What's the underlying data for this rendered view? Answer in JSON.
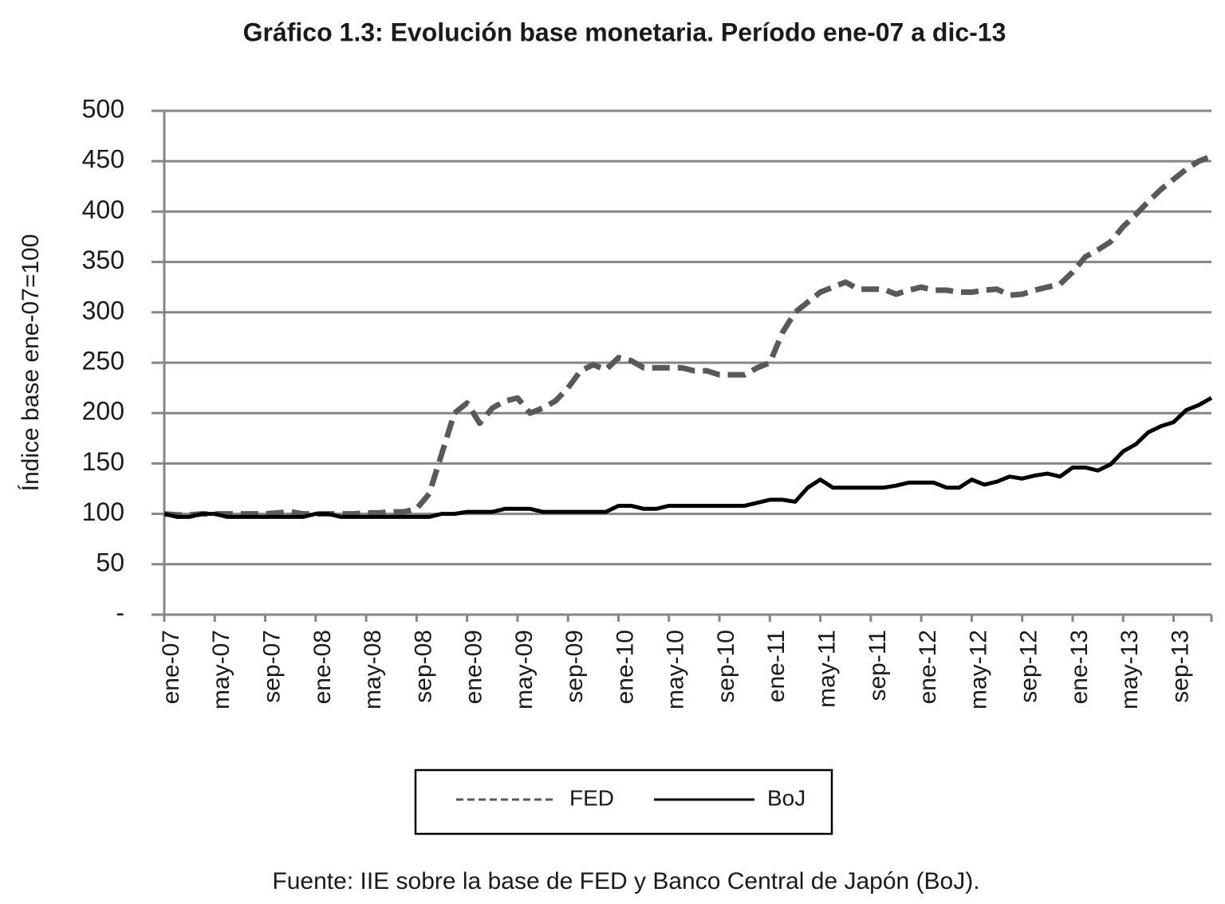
{
  "chart_data": {
    "type": "line",
    "title": "Gráfico 1.3: Evolución base monetaria. Período ene-07 a dic-13",
    "y_label": "Índice base ene-07=100",
    "source": "Fuente: IIE sobre la base de FED y Banco Central de Japón (BoJ).",
    "categories": [
      "ene-07",
      null,
      null,
      null,
      "may-07",
      null,
      null,
      null,
      "sep-07",
      null,
      null,
      null,
      "ene-08",
      null,
      null,
      null,
      "may-08",
      null,
      null,
      null,
      "sep-08",
      null,
      null,
      null,
      "ene-09",
      null,
      null,
      null,
      "may-09",
      null,
      null,
      null,
      "sep-09",
      null,
      null,
      null,
      "ene-10",
      null,
      null,
      null,
      "may-10",
      null,
      null,
      null,
      "sep-10",
      null,
      null,
      null,
      "ene-11",
      null,
      null,
      null,
      "may-11",
      null,
      null,
      null,
      "sep-11",
      null,
      null,
      null,
      "ene-12",
      null,
      null,
      null,
      "may-12",
      null,
      null,
      null,
      "sep-12",
      null,
      null,
      null,
      "ene-13",
      null,
      null,
      null,
      "may-13",
      null,
      null,
      null,
      "sep-13",
      null,
      null,
      null
    ],
    "series": [
      {
        "name": "FED",
        "color": "#595959",
        "dashed": true,
        "values": [
          100,
          99,
          99,
          100,
          100,
          100,
          100,
          100,
          100,
          101,
          102,
          100,
          100,
          100,
          100,
          100,
          101,
          101,
          102,
          102,
          105,
          120,
          160,
          200,
          210,
          190,
          205,
          212,
          215,
          200,
          205,
          212,
          225,
          242,
          248,
          243,
          255,
          252,
          245,
          245,
          245,
          245,
          242,
          242,
          238,
          238,
          238,
          245,
          250,
          280,
          300,
          310,
          320,
          325,
          330,
          323,
          323,
          323,
          318,
          322,
          325,
          322,
          322,
          320,
          320,
          322,
          323,
          317,
          318,
          322,
          325,
          328,
          340,
          355,
          362,
          370,
          385,
          397,
          410,
          422,
          432,
          442,
          450,
          455
        ]
      },
      {
        "name": "BoJ",
        "color": "#000000",
        "dashed": false,
        "values": [
          100,
          97,
          97,
          100,
          100,
          97,
          97,
          97,
          97,
          97,
          97,
          97,
          100,
          100,
          97,
          97,
          97,
          97,
          97,
          97,
          97,
          97,
          100,
          100,
          102,
          102,
          102,
          105,
          105,
          105,
          102,
          102,
          102,
          102,
          102,
          102,
          108,
          108,
          105,
          105,
          108,
          108,
          108,
          108,
          108,
          108,
          108,
          111,
          114,
          114,
          112,
          126,
          134,
          126,
          126,
          126,
          126,
          126,
          128,
          131,
          131,
          131,
          126,
          126,
          134,
          129,
          132,
          137,
          135,
          138,
          140,
          137,
          146,
          146,
          143,
          149,
          162,
          169,
          181,
          187,
          191,
          203,
          208,
          215
        ]
      }
    ],
    "ylim": [
      0,
      500
    ],
    "yticks": [
      {
        "value": 0,
        "label": "-"
      },
      50,
      100,
      150,
      200,
      250,
      300,
      350,
      400,
      450,
      500
    ],
    "grid": true,
    "grid_color": "#868686",
    "legend": "bottom"
  }
}
